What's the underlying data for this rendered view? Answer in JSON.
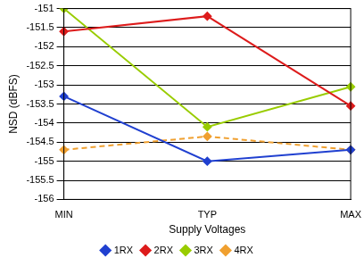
{
  "chart_data": {
    "type": "line",
    "x_label": "Supply Voltages",
    "y_label": "NSD (dBFS)",
    "categories": [
      "MIN",
      "TYP",
      "MAX"
    ],
    "series": [
      {
        "name": "1RX",
        "color": "#2040d0",
        "marker": "diamond",
        "line_style": "solid",
        "values": [
          -153.3,
          -155.0,
          -154.7
        ]
      },
      {
        "name": "2RX",
        "color": "#dd1c1c",
        "marker": "diamond",
        "line_style": "solid",
        "values": [
          -151.6,
          -151.2,
          -153.55
        ]
      },
      {
        "name": "3RX",
        "color": "#99cc00",
        "marker": "diamond",
        "line_style": "solid",
        "values": [
          -151.0,
          -154.1,
          -153.05
        ]
      },
      {
        "name": "4RX",
        "color": "#f0a030",
        "marker": "diamond",
        "line_style": "dashed",
        "values": [
          -154.7,
          -154.35,
          -154.7
        ]
      }
    ],
    "ylim": [
      -156,
      -151
    ],
    "yticks": [
      -156,
      -155.5,
      -155,
      -154.5,
      -154,
      -153.5,
      -153,
      -152.5,
      -152,
      -151.5,
      -151
    ],
    "grid": true,
    "legend": "bottom"
  }
}
